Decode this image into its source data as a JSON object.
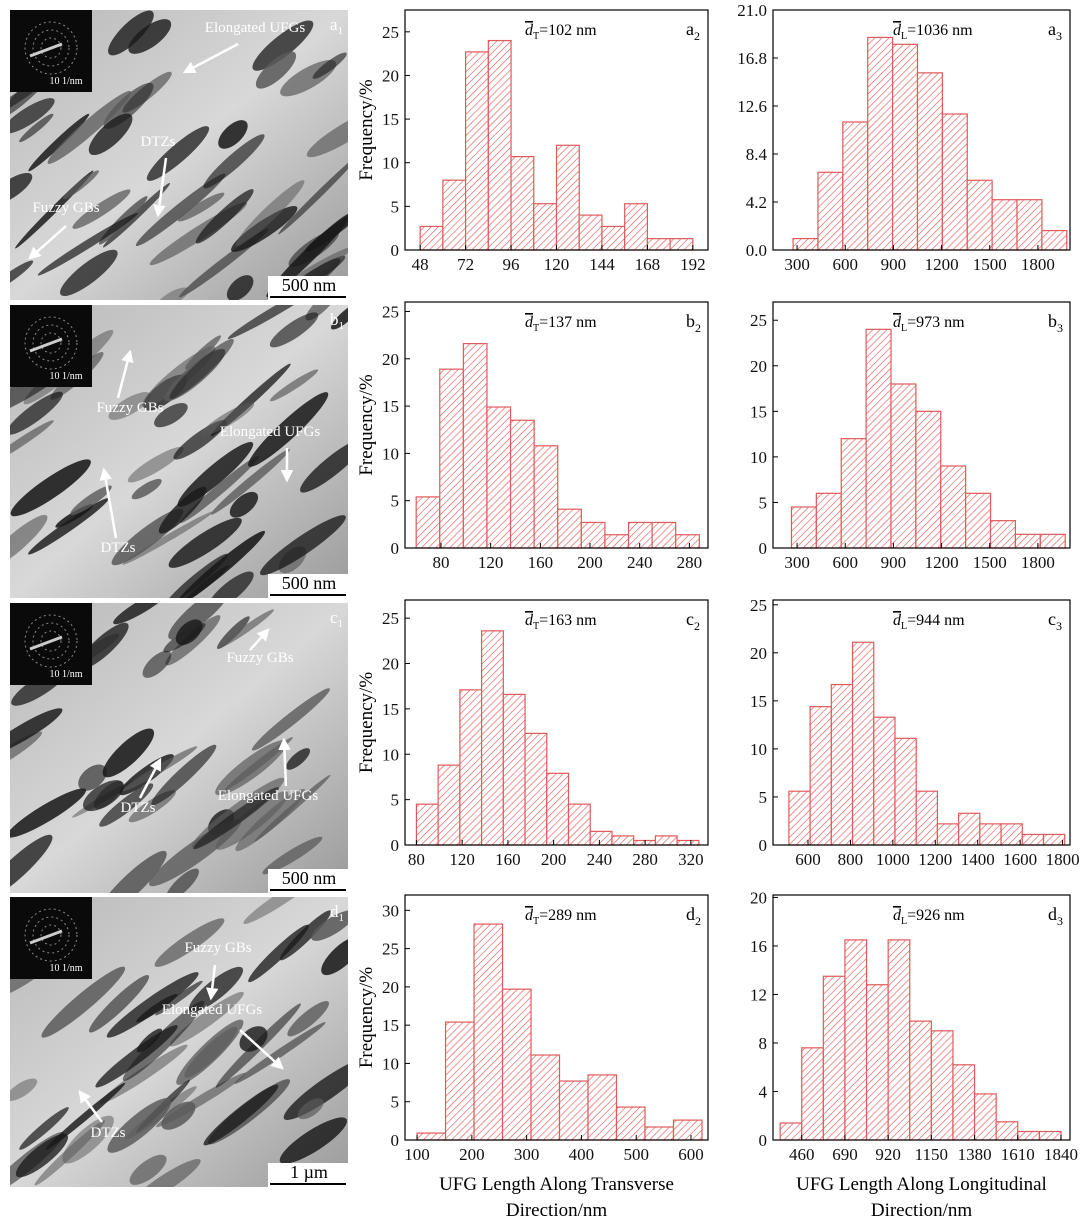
{
  "chart_data": [
    {
      "type": "histogram",
      "panel": "a",
      "panel_sub": "2",
      "mean_label": {
        "symbol": "d",
        "subscript": "T",
        "text": "=102 nm"
      },
      "ylabel": "Frequency/%",
      "bins": [
        48,
        60,
        72,
        84,
        96,
        108,
        120,
        132,
        144,
        156,
        168,
        180,
        192
      ],
      "values": [
        2.7,
        8,
        22.7,
        24,
        10.7,
        5.3,
        12,
        4,
        2.7,
        5.3,
        1.3,
        1.3
      ],
      "xlim": [
        40,
        200
      ],
      "ylim": [
        0,
        27.5
      ],
      "xticks": [
        48,
        72,
        96,
        120,
        144,
        168,
        192
      ],
      "yticks": [
        0,
        5,
        10,
        15,
        20,
        25
      ],
      "color": "#e05a5a"
    },
    {
      "type": "histogram",
      "panel": "a",
      "panel_sub": "3",
      "mean_label": {
        "symbol": "d",
        "subscript": "L",
        "text": "=1036 nm"
      },
      "bins": [
        275,
        430,
        585,
        740,
        895,
        1050,
        1205,
        1360,
        1515,
        1670,
        1825,
        1980
      ],
      "values": [
        1,
        6.8,
        11.2,
        18.6,
        18,
        15.5,
        11.9,
        6.1,
        4.4,
        4.4,
        1.7
      ],
      "xlim": [
        150,
        2000
      ],
      "ylim": [
        0,
        21
      ],
      "xticks": [
        300,
        600,
        900,
        1200,
        1500,
        1800
      ],
      "yticks": [
        {
          "value": 0,
          "label": "0.0"
        },
        4.2,
        8.4,
        12.6,
        16.8,
        {
          "value": 21,
          "label": "21.0"
        }
      ],
      "color": "#e05a5a"
    },
    {
      "type": "histogram",
      "panel": "b",
      "panel_sub": "2",
      "mean_label": {
        "symbol": "d",
        "subscript": "T",
        "text": "=137 nm"
      },
      "ylabel": "Frequency/%",
      "bins": [
        60,
        79,
        98,
        117,
        136,
        155,
        174,
        193,
        212,
        231,
        250,
        269,
        288
      ],
      "values": [
        5.4,
        18.9,
        21.6,
        14.9,
        13.5,
        10.8,
        4.1,
        2.7,
        1.4,
        2.7,
        2.7,
        1.4
      ],
      "xlim": [
        51,
        295
      ],
      "ylim": [
        0,
        26
      ],
      "xticks": [
        80,
        120,
        160,
        200,
        240,
        280
      ],
      "yticks": [
        0,
        5,
        10,
        15,
        20,
        25
      ],
      "color": "#e05a5a"
    },
    {
      "type": "histogram",
      "panel": "b",
      "panel_sub": "3",
      "mean_label": {
        "symbol": "d",
        "subscript": "L",
        "text": "=973 nm"
      },
      "bins": [
        265,
        420,
        575,
        730,
        885,
        1040,
        1195,
        1350,
        1505,
        1660,
        1815,
        1970
      ],
      "values": [
        4.5,
        6,
        12,
        24,
        18,
        15,
        9,
        6,
        3,
        1.5,
        1.5
      ],
      "xlim": [
        150,
        2000
      ],
      "ylim": [
        0,
        27
      ],
      "xticks": [
        300,
        600,
        900,
        1200,
        1500,
        1800
      ],
      "yticks": [
        0,
        5,
        10,
        15,
        20,
        25
      ],
      "color": "#e05a5a"
    },
    {
      "type": "histogram",
      "panel": "c",
      "panel_sub": "2",
      "mean_label": {
        "symbol": "d",
        "subscript": "T",
        "text": "=163 nm"
      },
      "ylabel": "Frequency/%",
      "bins": [
        80,
        99,
        118,
        137,
        156,
        175,
        194,
        213,
        232,
        251,
        270,
        289,
        308,
        327
      ],
      "values": [
        4.5,
        8.8,
        17.1,
        23.6,
        16.6,
        12.3,
        7.9,
        4.5,
        1.5,
        1,
        0.5,
        1,
        0.5
      ],
      "xlim": [
        70,
        335
      ],
      "ylim": [
        0,
        27
      ],
      "xticks": [
        80,
        120,
        160,
        200,
        240,
        280,
        320
      ],
      "yticks": [
        0,
        5,
        10,
        15,
        20,
        25
      ],
      "color": "#e05a5a"
    },
    {
      "type": "histogram",
      "panel": "c",
      "panel_sub": "3",
      "mean_label": {
        "symbol": "d",
        "subscript": "L",
        "text": "=944 nm"
      },
      "bins": [
        510,
        610,
        710,
        810,
        910,
        1010,
        1110,
        1210,
        1310,
        1410,
        1510,
        1610,
        1710,
        1810
      ],
      "values": [
        5.6,
        14.4,
        16.7,
        21.1,
        13.3,
        11.1,
        5.6,
        2.2,
        3.3,
        2.2,
        2.2,
        1.1,
        1.1
      ],
      "xlim": [
        435,
        1835
      ],
      "ylim": [
        0,
        25.5
      ],
      "xticks": [
        600,
        800,
        1000,
        1200,
        1400,
        1600,
        1800
      ],
      "yticks": [
        0,
        5,
        10,
        15,
        20,
        25
      ],
      "color": "#e05a5a"
    },
    {
      "type": "histogram",
      "panel": "d",
      "panel_sub": "2",
      "mean_label": {
        "symbol": "d",
        "subscript": "T",
        "text": "=289 nm"
      },
      "ylabel": "Frequency/%",
      "xlabel": [
        "UFG Length Along Transverse",
        "Direction/nm"
      ],
      "bins": [
        100,
        152,
        204,
        256,
        308,
        360,
        412,
        464,
        516,
        568,
        620
      ],
      "values": [
        0.9,
        15.4,
        28.2,
        19.7,
        11.1,
        7.7,
        8.5,
        4.3,
        1.7,
        2.6
      ],
      "xlim": [
        78,
        631
      ],
      "ylim": [
        0,
        32
      ],
      "xticks": [
        100,
        200,
        300,
        400,
        500,
        600
      ],
      "yticks": [
        0,
        5,
        10,
        15,
        20,
        25,
        30
      ],
      "color": "#e05a5a"
    },
    {
      "type": "histogram",
      "panel": "d",
      "panel_sub": "3",
      "mean_label": {
        "symbol": "d",
        "subscript": "L",
        "text": "=926 nm"
      },
      "xlabel": [
        "UFG Length Along Longitudinal",
        "Direction/nm"
      ],
      "bins": [
        345,
        460,
        575,
        690,
        805,
        920,
        1035,
        1150,
        1265,
        1380,
        1495,
        1610,
        1725,
        1840
      ],
      "values": [
        1.4,
        7.6,
        13.5,
        16.5,
        12.8,
        16.5,
        9.8,
        9,
        6.2,
        3.8,
        1.5,
        0.7,
        0.7
      ],
      "xlim": [
        307,
        1888
      ],
      "ylim": [
        0,
        20.2
      ],
      "xticks": [
        460,
        690,
        920,
        1150,
        1380,
        1610,
        1840
      ],
      "yticks": [
        0,
        4,
        8,
        12,
        16,
        20
      ],
      "color": "#e05a5a"
    }
  ],
  "images": [
    {
      "panel": "a",
      "panel_sub": "1",
      "inset_scale": "10 1/nm",
      "scale_bar": "500 nm",
      "annotations": [
        "Elongated UFGs",
        "DTZs",
        "Fuzzy GBs"
      ]
    },
    {
      "panel": "b",
      "panel_sub": "1",
      "inset_scale": "10 1/nm",
      "scale_bar": "500 nm",
      "annotations": [
        "Fuzzy GBs",
        "Elongated UFGs",
        "DTZs"
      ]
    },
    {
      "panel": "c",
      "panel_sub": "1",
      "inset_scale": "10 1/nm",
      "scale_bar": "500 nm",
      "annotations": [
        "Fuzzy GBs",
        "DTZs",
        "Elongated UFGs"
      ]
    },
    {
      "panel": "d",
      "panel_sub": "1",
      "inset_scale": "10 1/nm",
      "scale_bar": "1 µm",
      "annotations": [
        "Fuzzy GBs",
        "Elongated UFGs",
        "DTZs"
      ]
    }
  ]
}
